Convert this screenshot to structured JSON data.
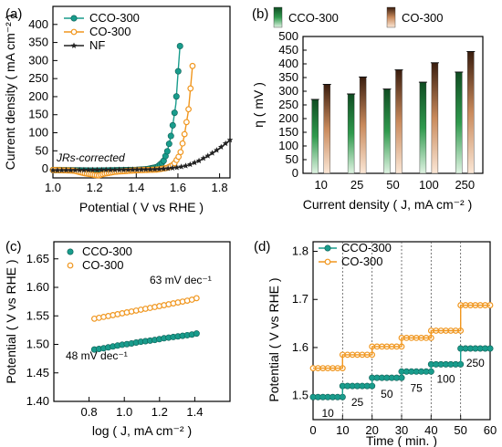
{
  "chart_data": [
    {
      "panel": "(a)",
      "type": "line",
      "xlabel": "Potential ( V vs RHE )",
      "ylabel": "Current density ( mA cm⁻² )",
      "xlim": [
        1.0,
        1.85
      ],
      "ylim": [
        -25,
        450
      ],
      "xticks": [
        "1.0",
        "1.2",
        "1.4",
        "1.6",
        "1.8"
      ],
      "yticks": [
        "0",
        "50",
        "100",
        "150",
        "200",
        "250",
        "300",
        "350",
        "400"
      ],
      "annotation": "JRs-corrected",
      "legend_position": "top-left",
      "series": [
        {
          "name": "CCO-300",
          "color": "#199c8c",
          "marker": "filled-circle",
          "x": [
            1.0,
            1.1,
            1.2,
            1.3,
            1.4,
            1.45,
            1.5,
            1.53,
            1.55,
            1.57,
            1.59,
            1.6,
            1.61
          ],
          "y": [
            -3,
            -4,
            -5,
            -4,
            -3,
            -1,
            5,
            20,
            50,
            100,
            180,
            260,
            340
          ]
        },
        {
          "name": "CO-300",
          "color": "#f0961e",
          "marker": "open-circle",
          "x": [
            1.0,
            1.1,
            1.15,
            1.2,
            1.22,
            1.25,
            1.3,
            1.4,
            1.5,
            1.55,
            1.58,
            1.61,
            1.63,
            1.65,
            1.66,
            1.67
          ],
          "y": [
            -3,
            -5,
            -12,
            -17,
            -18,
            -13,
            -8,
            -4,
            -2,
            3,
            12,
            40,
            90,
            160,
            220,
            285
          ]
        },
        {
          "name": "NF",
          "color": "#222222",
          "marker": "star",
          "x": [
            1.0,
            1.2,
            1.4,
            1.5,
            1.55,
            1.6,
            1.65,
            1.7,
            1.75,
            1.8,
            1.85
          ],
          "y": [
            -4,
            -3,
            -2,
            -1,
            1,
            4,
            10,
            22,
            38,
            57,
            80
          ]
        }
      ]
    },
    {
      "panel": "(b)",
      "type": "bar",
      "xlabel": "Current density ( J, mA cm⁻² )",
      "ylabel": "η ( mV )",
      "ylim": [
        0,
        500
      ],
      "yticks": [
        "0",
        "50",
        "100",
        "150",
        "200",
        "250",
        "300",
        "350",
        "400",
        "450",
        "500"
      ],
      "categories": [
        "10",
        "25",
        "50",
        "100",
        "250"
      ],
      "legend_position": "top",
      "series": [
        {
          "name": "CCO-300",
          "color": "#1f7a3a",
          "values": [
            270,
            290,
            308,
            333,
            370
          ]
        },
        {
          "name": "CO-300",
          "color": "#d9a27a",
          "values": [
            325,
            352,
            378,
            404,
            445
          ]
        }
      ]
    },
    {
      "panel": "(c)",
      "type": "scatter",
      "xlabel": "log ( J, mA cm⁻² )",
      "ylabel": "Potential ( V vs RHE )",
      "xlim": [
        0.6,
        1.6
      ],
      "ylim": [
        1.4,
        1.68
      ],
      "xticks": [
        "0.8",
        "1.0",
        "1.2",
        "1.4"
      ],
      "yticks": [
        "1.40",
        "1.45",
        "1.50",
        "1.55",
        "1.60",
        "1.65"
      ],
      "legend_position": "top-left",
      "series": [
        {
          "name": "CCO-300",
          "color": "#199c8c",
          "marker": "filled-circle",
          "x": [
            0.83,
            0.88,
            0.93,
            0.98,
            1.03,
            1.08,
            1.13,
            1.18,
            1.23,
            1.28,
            1.33,
            1.38,
            1.41
          ],
          "y": [
            1.491,
            1.493,
            1.496,
            1.499,
            1.501,
            1.504,
            1.506,
            1.508,
            1.511,
            1.513,
            1.515,
            1.517,
            1.519
          ],
          "fit_label": "48 mV dec⁻¹"
        },
        {
          "name": "CO-300",
          "color": "#f0961e",
          "marker": "open-circle",
          "x": [
            0.83,
            0.88,
            0.93,
            0.98,
            1.03,
            1.08,
            1.13,
            1.18,
            1.23,
            1.28,
            1.33,
            1.38,
            1.41
          ],
          "y": [
            1.545,
            1.548,
            1.551,
            1.554,
            1.557,
            1.56,
            1.563,
            1.566,
            1.569,
            1.572,
            1.575,
            1.578,
            1.581
          ],
          "fit_label": "63 mV dec⁻¹"
        }
      ]
    },
    {
      "panel": "(d)",
      "type": "line",
      "xlabel": "Time ( min. )",
      "ylabel": "Potential ( V vs RHE )",
      "xlim": [
        0,
        60
      ],
      "ylim": [
        1.45,
        1.82
      ],
      "xticks": [
        "0",
        "10",
        "20",
        "30",
        "40",
        "50",
        "60"
      ],
      "yticks": [
        "1.5",
        "1.6",
        "1.7",
        "1.8"
      ],
      "step_labels": [
        "10",
        "25",
        "50",
        "75",
        "100",
        "250"
      ],
      "legend_position": "top-left",
      "series": [
        {
          "name": "CCO-300",
          "color": "#199c8c",
          "marker": "filled-circle",
          "x": [
            0,
            10,
            20,
            30,
            40,
            50
          ],
          "y": [
            1.497,
            1.52,
            1.537,
            1.55,
            1.565,
            1.598
          ]
        },
        {
          "name": "CO-300",
          "color": "#f0961e",
          "marker": "open-circle",
          "x": [
            0,
            10,
            20,
            30,
            40,
            50
          ],
          "y": [
            1.557,
            1.585,
            1.602,
            1.62,
            1.635,
            1.688
          ]
        }
      ]
    }
  ]
}
